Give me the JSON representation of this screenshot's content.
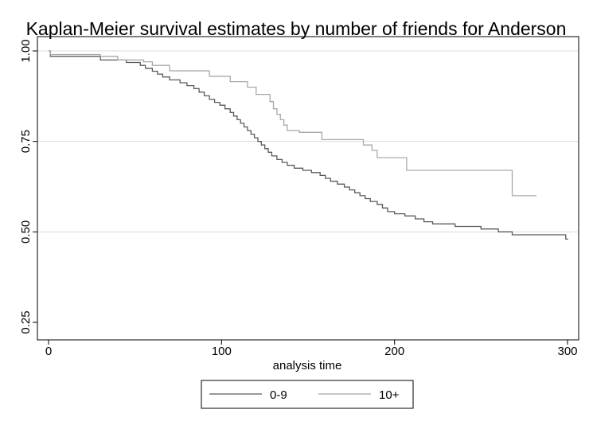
{
  "chart_data": {
    "type": "line",
    "title": "Kaplan-Meier survival estimates by number of friends for Anderson",
    "xlabel": "analysis time",
    "ylabel": "",
    "xlim": [
      0,
      300
    ],
    "ylim": [
      0.25,
      1.0
    ],
    "x_ticks": [
      0,
      100,
      200,
      300
    ],
    "y_ticks": [
      0.25,
      0.5,
      0.75,
      1.0
    ],
    "x_tick_labels": [
      "0",
      "100",
      "200",
      "300"
    ],
    "y_tick_labels": [
      "0.25",
      "0.50",
      "0.75",
      "1.00"
    ],
    "grid": "horizontal",
    "legend_position": "bottom",
    "series": [
      {
        "name": "0-9",
        "color": "#5a5a5a",
        "step_points": [
          [
            0,
            1.0
          ],
          [
            1,
            0.985
          ],
          [
            30,
            0.975
          ],
          [
            45,
            0.968
          ],
          [
            53,
            0.96
          ],
          [
            56,
            0.952
          ],
          [
            60,
            0.944
          ],
          [
            63,
            0.936
          ],
          [
            66,
            0.928
          ],
          [
            70,
            0.92
          ],
          [
            76,
            0.912
          ],
          [
            80,
            0.904
          ],
          [
            84,
            0.896
          ],
          [
            87,
            0.886
          ],
          [
            90,
            0.876
          ],
          [
            93,
            0.866
          ],
          [
            96,
            0.858
          ],
          [
            99,
            0.85
          ],
          [
            102,
            0.84
          ],
          [
            105,
            0.83
          ],
          [
            107,
            0.82
          ],
          [
            109,
            0.81
          ],
          [
            111,
            0.8
          ],
          [
            113,
            0.79
          ],
          [
            115,
            0.78
          ],
          [
            117,
            0.77
          ],
          [
            119,
            0.76
          ],
          [
            121,
            0.75
          ],
          [
            123,
            0.74
          ],
          [
            125,
            0.73
          ],
          [
            127,
            0.72
          ],
          [
            129,
            0.71
          ],
          [
            132,
            0.7
          ],
          [
            135,
            0.692
          ],
          [
            138,
            0.684
          ],
          [
            142,
            0.676
          ],
          [
            147,
            0.67
          ],
          [
            152,
            0.664
          ],
          [
            157,
            0.656
          ],
          [
            160,
            0.648
          ],
          [
            163,
            0.64
          ],
          [
            167,
            0.632
          ],
          [
            171,
            0.624
          ],
          [
            174,
            0.616
          ],
          [
            177,
            0.608
          ],
          [
            180,
            0.6
          ],
          [
            183,
            0.592
          ],
          [
            186,
            0.584
          ],
          [
            190,
            0.576
          ],
          [
            193,
            0.566
          ],
          [
            196,
            0.556
          ],
          [
            200,
            0.55
          ],
          [
            206,
            0.544
          ],
          [
            212,
            0.536
          ],
          [
            217,
            0.528
          ],
          [
            222,
            0.522
          ],
          [
            235,
            0.515
          ],
          [
            250,
            0.508
          ],
          [
            260,
            0.5
          ],
          [
            268,
            0.492
          ],
          [
            299,
            0.48
          ],
          [
            300,
            0.478
          ]
        ]
      },
      {
        "name": "10+",
        "color": "#a8a8a8",
        "step_points": [
          [
            0,
            1.0
          ],
          [
            1,
            0.99
          ],
          [
            30,
            0.985
          ],
          [
            40,
            0.975
          ],
          [
            55,
            0.97
          ],
          [
            60,
            0.96
          ],
          [
            70,
            0.945
          ],
          [
            93,
            0.93
          ],
          [
            105,
            0.915
          ],
          [
            115,
            0.9
          ],
          [
            120,
            0.88
          ],
          [
            128,
            0.86
          ],
          [
            130,
            0.84
          ],
          [
            132,
            0.825
          ],
          [
            134,
            0.81
          ],
          [
            136,
            0.795
          ],
          [
            138,
            0.78
          ],
          [
            145,
            0.775
          ],
          [
            158,
            0.755
          ],
          [
            182,
            0.74
          ],
          [
            187,
            0.725
          ],
          [
            190,
            0.705
          ],
          [
            207,
            0.67
          ],
          [
            268,
            0.6
          ],
          [
            282,
            0.6
          ]
        ]
      }
    ]
  }
}
